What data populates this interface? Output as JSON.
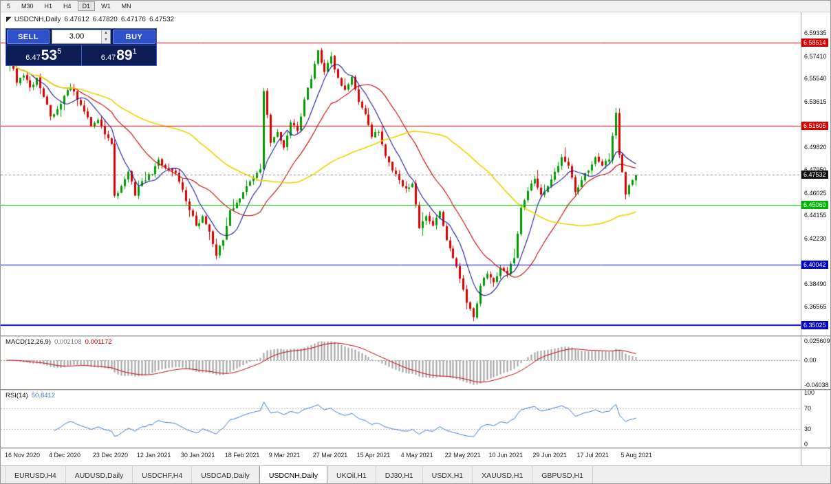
{
  "toolbar": {
    "periods": [
      "5",
      "M30",
      "H1",
      "H4",
      "D1",
      "W1",
      "MN"
    ],
    "active": "D1"
  },
  "chart": {
    "symbol_timeframe": "USDCNH,Daily",
    "open": "6.47612",
    "high": "6.47820",
    "low": "6.47176",
    "close": "6.47532"
  },
  "trade_panel": {
    "sell_label": "SELL",
    "buy_label": "BUY",
    "volume": "3.00",
    "sell_price": {
      "prefix": "6.47",
      "big": "53",
      "sup": "5"
    },
    "buy_price": {
      "prefix": "6.47",
      "big": "89",
      "sup": "1"
    }
  },
  "price_scale": {
    "ticks": [
      "6.59335",
      "6.57410",
      "6.55540",
      "6.53615",
      "6.49820",
      "6.47950",
      "6.46025",
      "6.44155",
      "6.42230",
      "6.38490",
      "6.36565"
    ],
    "levels": [
      {
        "value": "6.58514",
        "color": "#d60000"
      },
      {
        "value": "6.51605",
        "color": "#d60000"
      },
      {
        "value": "6.45060",
        "color": "#00b400"
      },
      {
        "value": "6.40042",
        "color": "#0000cc"
      },
      {
        "value": "6.35025",
        "color": "#0000cc"
      }
    ],
    "current": {
      "value": "6.47532",
      "bg": "#101010"
    }
  },
  "indicators": {
    "macd": {
      "name": "MACD(12,26,9)",
      "value": "0.002108",
      "signal_value": "0.001172",
      "scale": [
        "0.025609",
        "0.00",
        "-0.04038"
      ]
    },
    "rsi": {
      "name": "RSI(14)",
      "value": "50.8412",
      "scale": [
        "100",
        "70",
        "30",
        "0"
      ]
    }
  },
  "dates": [
    "16 Nov 2020",
    "4 Dec 2020",
    "23 Dec 2020",
    "12 Jan 2021",
    "30 Jan 2021",
    "18 Feb 2021",
    "9 Mar 2021",
    "27 Mar 2021",
    "15 Apr 2021",
    "4 May 2021",
    "22 May 2021",
    "10 Jun 2021",
    "29 Jun 2021",
    "17 Jul 2021",
    "5 Aug 2021"
  ],
  "tabs": {
    "items": [
      "EURUSD,H4",
      "AUDUSD,Daily",
      "USDCHF,H4",
      "USDCAD,Daily",
      "USDCNH,Daily",
      "UKOil,H1",
      "DJ30,H1",
      "USDX,H1",
      "XAUUSD,H1",
      "GBPUSD,H1"
    ],
    "active": "USDCNH,Daily"
  },
  "chart_data": {
    "type": "candlestick",
    "symbol": "USDCNH",
    "timeframe": "Daily",
    "num_candles": 187,
    "price_axis": {
      "top": 6.6105,
      "bottom": 6.3417
    },
    "close_keyframes": [
      [
        0,
        6.568
      ],
      [
        1,
        6.575
      ],
      [
        3,
        6.552
      ],
      [
        5,
        6.558
      ],
      [
        7,
        6.548
      ],
      [
        9,
        6.556
      ],
      [
        11,
        6.54
      ],
      [
        13,
        6.524
      ],
      [
        15,
        6.53
      ],
      [
        17,
        6.541
      ],
      [
        19,
        6.548
      ],
      [
        21,
        6.538
      ],
      [
        23,
        6.528
      ],
      [
        25,
        6.516
      ],
      [
        27,
        6.521
      ],
      [
        29,
        6.509
      ],
      [
        31,
        6.501
      ],
      [
        32,
        6.458
      ],
      [
        34,
        6.466
      ],
      [
        36,
        6.478
      ],
      [
        38,
        6.458
      ],
      [
        40,
        6.47
      ],
      [
        43,
        6.476
      ],
      [
        45,
        6.488
      ],
      [
        47,
        6.481
      ],
      [
        50,
        6.477
      ],
      [
        52,
        6.463
      ],
      [
        54,
        6.446
      ],
      [
        56,
        6.433
      ],
      [
        58,
        6.441
      ],
      [
        60,
        6.428
      ],
      [
        62,
        6.408
      ],
      [
        64,
        6.421
      ],
      [
        66,
        6.446
      ],
      [
        68,
        6.452
      ],
      [
        70,
        6.461
      ],
      [
        72,
        6.47
      ],
      [
        74,
        6.477
      ],
      [
        75,
        6.48
      ],
      [
        76,
        6.545
      ],
      [
        78,
        6.502
      ],
      [
        80,
        6.511
      ],
      [
        82,
        6.498
      ],
      [
        84,
        6.519
      ],
      [
        86,
        6.512
      ],
      [
        88,
        6.538
      ],
      [
        90,
        6.555
      ],
      [
        92,
        6.579
      ],
      [
        94,
        6.561
      ],
      [
        96,
        6.574
      ],
      [
        98,
        6.556
      ],
      [
        100,
        6.546
      ],
      [
        102,
        6.557
      ],
      [
        104,
        6.536
      ],
      [
        106,
        6.526
      ],
      [
        108,
        6.507
      ],
      [
        110,
        6.511
      ],
      [
        112,
        6.491
      ],
      [
        114,
        6.479
      ],
      [
        116,
        6.471
      ],
      [
        118,
        6.464
      ],
      [
        120,
        6.468
      ],
      [
        122,
        6.431
      ],
      [
        124,
        6.441
      ],
      [
        126,
        6.433
      ],
      [
        128,
        6.445
      ],
      [
        130,
        6.421
      ],
      [
        132,
        6.406
      ],
      [
        134,
        6.389
      ],
      [
        136,
        6.369
      ],
      [
        138,
        6.357
      ],
      [
        140,
        6.383
      ],
      [
        142,
        6.393
      ],
      [
        144,
        6.386
      ],
      [
        146,
        6.398
      ],
      [
        148,
        6.393
      ],
      [
        150,
        6.406
      ],
      [
        152,
        6.448
      ],
      [
        154,
        6.462
      ],
      [
        156,
        6.472
      ],
      [
        158,
        6.459
      ],
      [
        160,
        6.466
      ],
      [
        162,
        6.478
      ],
      [
        164,
        6.49
      ],
      [
        166,
        6.483
      ],
      [
        168,
        6.461
      ],
      [
        170,
        6.471
      ],
      [
        172,
        6.479
      ],
      [
        174,
        6.49
      ],
      [
        176,
        6.483
      ],
      [
        178,
        6.488
      ],
      [
        180,
        6.527
      ],
      [
        181,
        6.492
      ],
      [
        183,
        6.459
      ],
      [
        185,
        6.471
      ],
      [
        186,
        6.4753
      ]
    ],
    "moving_averages": [
      {
        "period": 8,
        "color": "#16169c"
      },
      {
        "period": 21,
        "color": "#c00000"
      },
      {
        "period": 55,
        "color": "#e8d400"
      }
    ],
    "h_lines": [
      {
        "price": 6.58514,
        "color": "#d60000",
        "width": 1
      },
      {
        "price": 6.51605,
        "color": "#d60000",
        "width": 1
      },
      {
        "price": 6.4506,
        "color": "#00b400",
        "width": 1
      },
      {
        "price": 6.40042,
        "color": "#0000cc",
        "width": 1
      },
      {
        "price": 6.35025,
        "color": "#0000cc",
        "width": 2
      }
    ],
    "current_price": 6.47532,
    "bull_color": "#009a00",
    "bear_color": "#d40000",
    "macd": {
      "fast": 12,
      "slow": 26,
      "signal": 9,
      "hist_color": "#a0a0a0",
      "signal_color": "#c00000"
    },
    "rsi": {
      "period": 14,
      "color": "#3c78c8",
      "levels": [
        30,
        70
      ]
    }
  }
}
